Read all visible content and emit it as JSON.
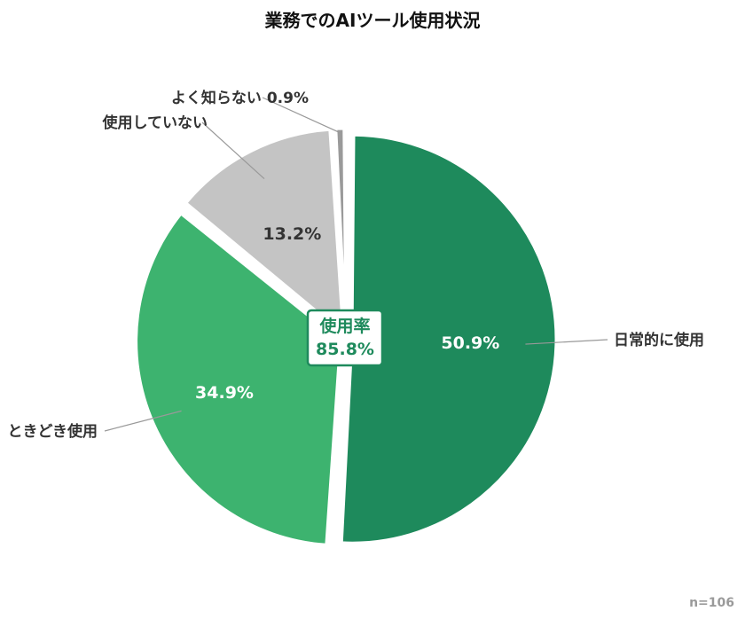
{
  "chart_data": {
    "type": "pie",
    "title": "業務でのAIツール使用状況",
    "slices": [
      {
        "label": "日常的に使用",
        "value": 50.9,
        "value_label": "50.9%",
        "color": "#1e8a5c",
        "text_color": "#ffffff"
      },
      {
        "label": "ときどき使用",
        "value": 34.9,
        "value_label": "34.9%",
        "color": "#3db36f",
        "text_color": "#ffffff"
      },
      {
        "label": "使用していない",
        "value": 13.2,
        "value_label": "13.2%",
        "color": "#c4c4c4",
        "text_color": "#333333"
      },
      {
        "label": "よく知らない 0.9%",
        "value": 0.9,
        "value_label": "",
        "color": "#9a9a9a",
        "text_color": "#333333"
      }
    ],
    "center": {
      "line1": "使用率",
      "line2": "85.8%",
      "color": "#1e8a5c"
    },
    "note": "n=106"
  }
}
